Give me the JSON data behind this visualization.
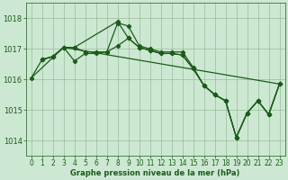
{
  "background_color": "#cde8d2",
  "grid_color": "#99bb99",
  "line_color": "#1a5c1a",
  "xlabel": "Graphe pression niveau de la mer (hPa)",
  "xlim": [
    -0.5,
    23.5
  ],
  "ylim": [
    1013.5,
    1018.5
  ],
  "yticks": [
    1014,
    1015,
    1016,
    1017,
    1018
  ],
  "xticks": [
    0,
    1,
    2,
    3,
    4,
    5,
    6,
    7,
    8,
    9,
    10,
    11,
    12,
    13,
    14,
    15,
    16,
    17,
    18,
    19,
    20,
    21,
    22,
    23
  ],
  "series1_x": [
    0,
    1,
    2,
    3,
    4,
    5,
    6,
    7,
    8,
    9,
    10,
    11,
    12,
    13,
    14,
    15,
    16,
    17,
    18,
    19,
    20,
    21,
    22,
    23
  ],
  "series1_y": [
    1016.05,
    1016.65,
    1016.75,
    1017.05,
    1017.05,
    1016.9,
    1016.9,
    1016.9,
    1017.1,
    1017.35,
    1017.05,
    1016.95,
    1016.85,
    1016.85,
    1016.8,
    1016.35,
    1015.8,
    1015.5,
    1015.3,
    1014.1,
    1014.9,
    1015.3,
    1014.85,
    1015.85
  ],
  "series2_x": [
    1,
    2,
    3,
    4,
    5,
    6,
    7,
    8,
    9,
    10,
    11,
    12,
    13,
    14,
    15,
    16,
    17,
    18,
    19,
    20,
    21,
    22,
    23
  ],
  "series2_y": [
    1016.65,
    1016.75,
    1017.05,
    1016.6,
    1016.85,
    1016.85,
    1016.9,
    1017.85,
    1017.75,
    1017.1,
    1017.0,
    1016.9,
    1016.9,
    1016.9,
    1016.4,
    1015.8,
    1015.5,
    1015.3,
    1014.1,
    1014.9,
    1015.3,
    1014.85,
    1015.85
  ],
  "series3_x": [
    0,
    3,
    23
  ],
  "series3_y": [
    1016.05,
    1017.05,
    1015.85
  ],
  "series4_x": [
    1,
    2,
    3,
    4,
    8,
    9,
    10,
    11,
    12,
    13,
    14,
    15,
    16,
    17,
    18,
    19,
    20,
    21,
    22,
    23
  ],
  "series4_y": [
    1016.65,
    1016.75,
    1017.05,
    1017.05,
    1017.9,
    1017.35,
    1017.05,
    1016.95,
    1016.85,
    1016.85,
    1016.8,
    1016.35,
    1015.8,
    1015.5,
    1015.3,
    1014.1,
    1014.9,
    1015.3,
    1014.85,
    1015.85
  ]
}
